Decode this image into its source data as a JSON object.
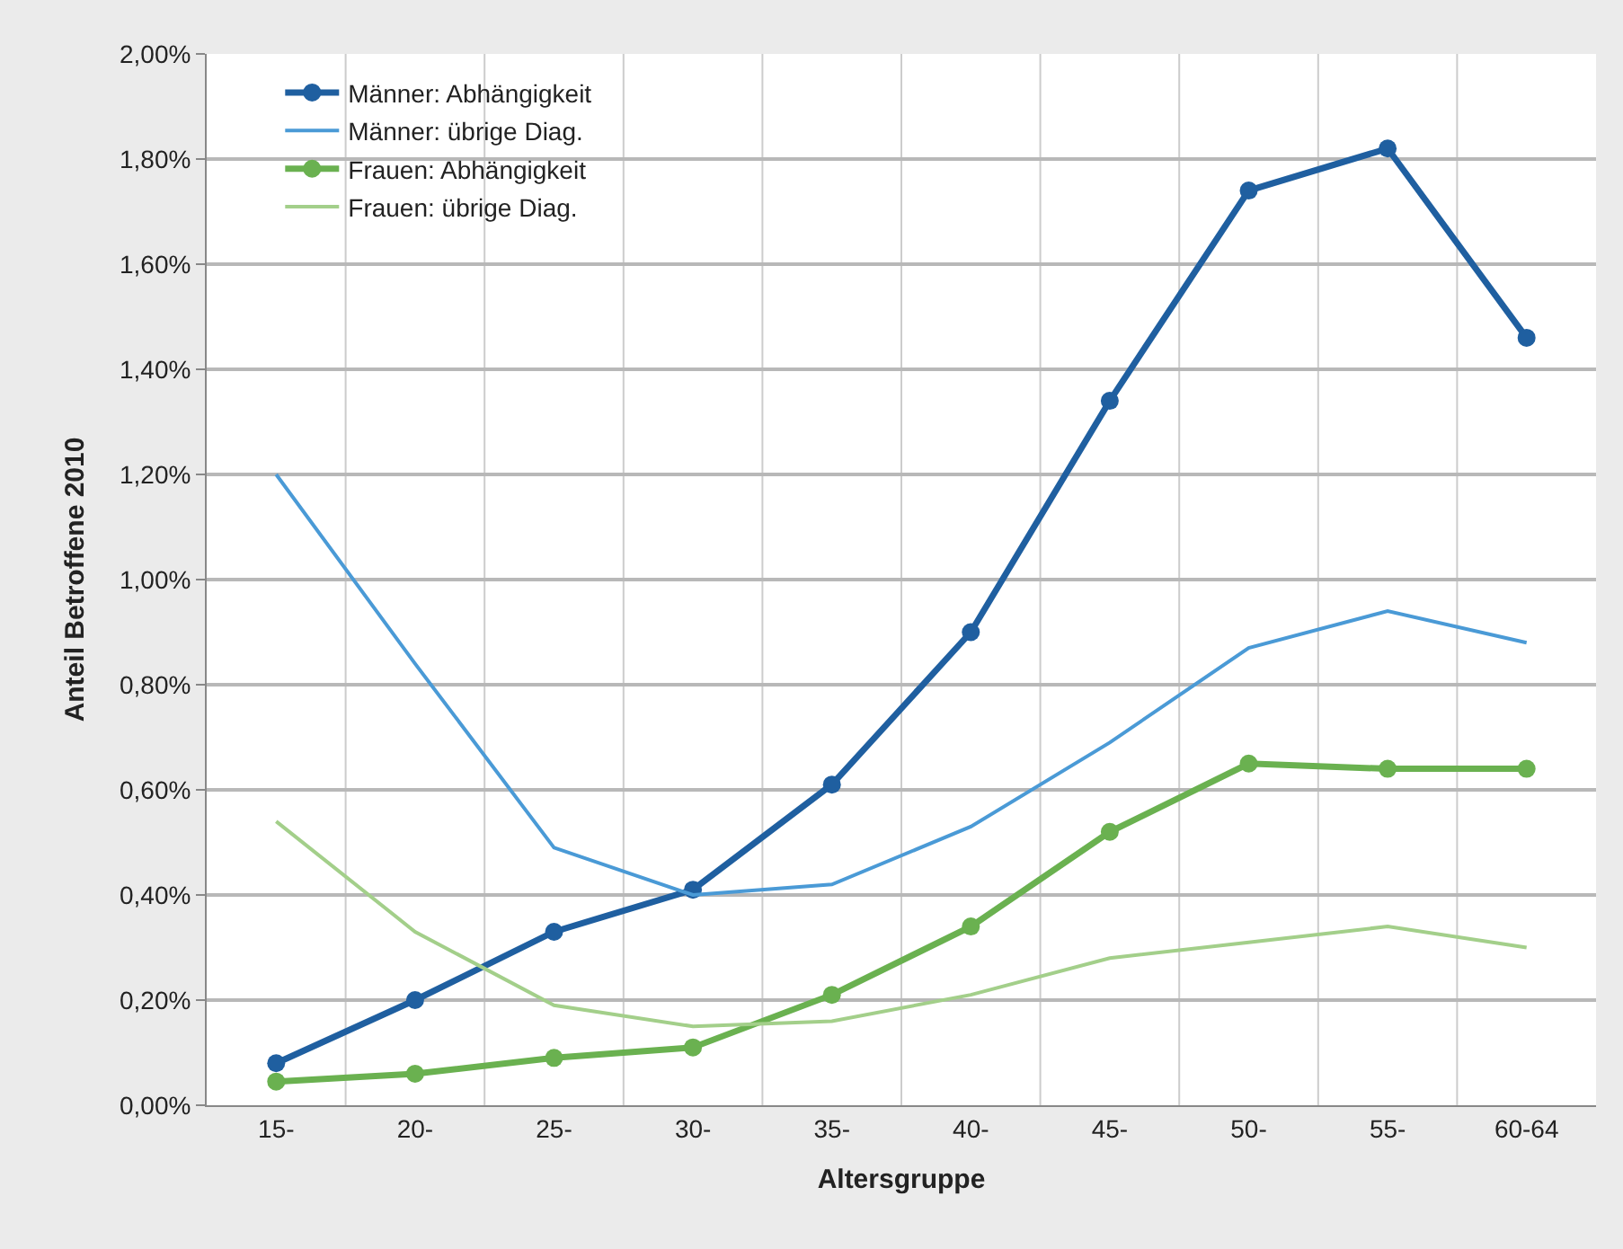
{
  "chart_data": {
    "type": "line",
    "xlabel": "Altersgruppe",
    "ylabel": "Anteil Betroffene 2010",
    "categories": [
      "15-",
      "20-",
      "25-",
      "30-",
      "35-",
      "40-",
      "45-",
      "50-",
      "55-",
      "60-64"
    ],
    "series": [
      {
        "name": "Männer: Abhängigkeit",
        "color": "#1f5fa0",
        "marker": "circle",
        "values": [
          0.08,
          0.2,
          0.33,
          0.41,
          0.61,
          0.9,
          1.34,
          1.74,
          1.82,
          1.46
        ]
      },
      {
        "name": "Männer: übrige Diag.",
        "color": "#4a9ad6",
        "marker": "none",
        "values": [
          1.2,
          0.84,
          0.49,
          0.4,
          0.42,
          0.53,
          0.69,
          0.87,
          0.94,
          0.88
        ]
      },
      {
        "name": "Frauen: Abhängigkeit",
        "color": "#6ab150",
        "marker": "circle",
        "values": [
          0.045,
          0.06,
          0.09,
          0.11,
          0.21,
          0.34,
          0.52,
          0.65,
          0.64,
          0.64
        ]
      },
      {
        "name": "Frauen: übrige Diag.",
        "color": "#a3cf8a",
        "marker": "none",
        "values": [
          0.54,
          0.33,
          0.19,
          0.15,
          0.16,
          0.21,
          0.28,
          0.31,
          0.34,
          0.3
        ]
      }
    ],
    "ylim": [
      0,
      2
    ],
    "yticks": [
      {
        "value": 0,
        "label": "0,00%"
      },
      {
        "value": 0.2,
        "label": "0,20%"
      },
      {
        "value": 0.4,
        "label": "0,40%"
      },
      {
        "value": 0.6,
        "label": "0,60%"
      },
      {
        "value": 0.8,
        "label": "0,80%"
      },
      {
        "value": 1.0,
        "label": "1,00%"
      },
      {
        "value": 1.2,
        "label": "1,20%"
      },
      {
        "value": 1.4,
        "label": "1,40%"
      },
      {
        "value": 1.6,
        "label": "1,60%"
      },
      {
        "value": 1.8,
        "label": "1,80%"
      },
      {
        "value": 2.0,
        "label": "2,00%"
      }
    ],
    "grid": true,
    "legend": "top left",
    "line_style": "solid"
  }
}
